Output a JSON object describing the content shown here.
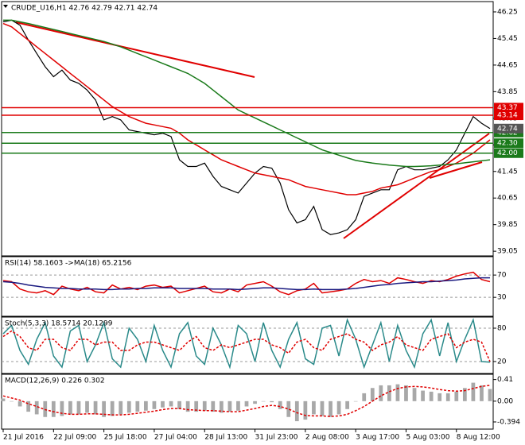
{
  "chart_data": [
    {
      "type": "line",
      "title": "CRUDE_U16,H1 42.76 42.79 42.71 42.74",
      "categories": [
        "21 Jul 2016",
        null,
        null,
        null,
        null,
        null,
        "22 Jul 09:00",
        null,
        null,
        null,
        null,
        null,
        "25 Jul 18:00",
        null,
        null,
        null,
        null,
        null,
        "27 Jul 04:00",
        null,
        null,
        null,
        null,
        null,
        "28 Jul 13:00",
        null,
        null,
        null,
        null,
        null,
        "31 Jul 23:00",
        null,
        null,
        null,
        null,
        null,
        "2 Aug 08:00",
        null,
        null,
        null,
        null,
        null,
        "3 Aug 17:00",
        null,
        null,
        null,
        null,
        null,
        "5 Aug 03:00",
        null,
        null,
        null,
        null,
        null,
        "8 Aug 12:00",
        null,
        null,
        null,
        null
      ],
      "series": [
        {
          "style": "line",
          "color": "#000000",
          "values": [
            45.95,
            46.0,
            45.85,
            45.4,
            45.0,
            44.6,
            44.3,
            44.5,
            44.2,
            44.1,
            43.9,
            43.6,
            43.0,
            43.1,
            43.0,
            42.7,
            42.65,
            42.6,
            42.55,
            42.6,
            42.5,
            41.8,
            41.6,
            41.6,
            41.7,
            41.3,
            41.0,
            40.9,
            40.8,
            41.1,
            41.4,
            41.6,
            41.55,
            41.1,
            40.3,
            39.9,
            40.0,
            40.4,
            39.7,
            39.55,
            39.6,
            39.7,
            40.0,
            40.7,
            40.8,
            40.9,
            40.9,
            41.5,
            41.6,
            41.5,
            41.5,
            41.55,
            41.6,
            41.8,
            42.1,
            42.6,
            43.1,
            42.9,
            42.74
          ]
        },
        {
          "style": "line",
          "color": "#e00000",
          "values": [
            45.9,
            45.8,
            45.6,
            45.4,
            45.2,
            45.0,
            44.8,
            44.6,
            44.4,
            44.2,
            44.0,
            43.8,
            43.6,
            43.4,
            43.25,
            43.1,
            43.0,
            42.9,
            42.85,
            42.8,
            42.75,
            42.6,
            42.4,
            42.25,
            42.1,
            41.95,
            41.8,
            41.7,
            41.6,
            41.5,
            41.4,
            41.35,
            41.3,
            41.25,
            41.2,
            41.1,
            41.0,
            40.95,
            40.9,
            40.85,
            40.8,
            40.75,
            40.75,
            40.8,
            40.85,
            40.95,
            41.0,
            41.05,
            41.15,
            41.25,
            41.35,
            41.45,
            41.5,
            41.6,
            41.7,
            41.85,
            42.0,
            42.2,
            42.4
          ]
        },
        {
          "style": "line",
          "color": "#1a7a1a",
          "values": [
            46.0,
            46.0,
            45.95,
            45.9,
            45.84,
            45.78,
            45.72,
            45.66,
            45.6,
            45.54,
            45.48,
            45.42,
            45.36,
            45.28,
            45.2,
            45.1,
            45.0,
            44.9,
            44.8,
            44.7,
            44.6,
            44.5,
            44.4,
            44.25,
            44.1,
            43.9,
            43.7,
            43.5,
            43.3,
            43.18,
            43.06,
            42.94,
            42.82,
            42.7,
            42.58,
            42.46,
            42.34,
            42.22,
            42.1,
            42.02,
            41.94,
            41.86,
            41.78,
            41.74,
            41.7,
            41.67,
            41.64,
            41.62,
            41.6,
            41.6,
            41.61,
            41.62,
            41.64,
            41.66,
            41.68,
            41.71,
            41.74,
            41.77,
            41.8
          ]
        }
      ],
      "ylim": [
        38.91,
        46.56
      ],
      "yticks": [
        46.25,
        45.45,
        44.65,
        43.85,
        43.05,
        42.25,
        41.45,
        40.65,
        39.85,
        39.05
      ],
      "levels": [
        43.37,
        43.14,
        42.62,
        {
          "value": 42.3,
          "label": "42.30"
        },
        {
          "value": 42.0,
          "label": "42.00"
        }
      ],
      "level_colors": [
        "#e00000",
        "#e00000",
        "#1a7a1a",
        "#1a7a1a",
        "#1a7a1a"
      ],
      "last_price": 42.74,
      "last_price_color": "#555555",
      "grid": false
    },
    {
      "type": "line",
      "title": "RSI(14) 58.1603 ->MA(18) 65.2156",
      "series": [
        {
          "style": "line",
          "color": "#e00000",
          "values": [
            60,
            58,
            45,
            40,
            38,
            42,
            35,
            50,
            45,
            42,
            48,
            40,
            38,
            52,
            45,
            48,
            44,
            50,
            52,
            48,
            50,
            38,
            42,
            46,
            50,
            40,
            38,
            45,
            40,
            52,
            55,
            58,
            50,
            40,
            35,
            42,
            45,
            55,
            38,
            40,
            42,
            45,
            55,
            62,
            58,
            60,
            55,
            65,
            62,
            58,
            55,
            60,
            58,
            62,
            68,
            72,
            75,
            62,
            58
          ]
        },
        {
          "style": "line",
          "color": "#1a1a80",
          "values": [
            58,
            57,
            55,
            52,
            50,
            48,
            47,
            46,
            46,
            45,
            45,
            45,
            44,
            44,
            45,
            45,
            46,
            46,
            47,
            47,
            47,
            46,
            46,
            46,
            46,
            45,
            45,
            45,
            44,
            45,
            46,
            47,
            47,
            46,
            45,
            44,
            44,
            45,
            44,
            44,
            44,
            45,
            46,
            48,
            50,
            52,
            53,
            55,
            56,
            57,
            58,
            58,
            59,
            60,
            61,
            63,
            64,
            65,
            65
          ]
        }
      ],
      "ylim": [
        -4,
        103
      ],
      "yticks": [
        70,
        30
      ],
      "grid": true
    },
    {
      "type": "line",
      "title": "Stoch(5,3,3) 18.5714 20.1299",
      "series": [
        {
          "style": "line",
          "color": "#2a8a8a",
          "values": [
            70,
            85,
            40,
            15,
            60,
            90,
            30,
            10,
            75,
            85,
            20,
            50,
            90,
            25,
            10,
            80,
            60,
            20,
            85,
            40,
            10,
            70,
            90,
            30,
            15,
            80,
            50,
            10,
            85,
            70,
            20,
            90,
            40,
            10,
            60,
            90,
            25,
            15,
            80,
            85,
            30,
            95,
            60,
            10,
            50,
            90,
            20,
            85,
            40,
            10,
            70,
            95,
            30,
            90,
            20,
            60,
            95,
            20,
            19
          ]
        },
        {
          "style": "dashed",
          "color": "#e00000",
          "values": [
            65,
            75,
            65,
            45,
            40,
            60,
            60,
            45,
            40,
            60,
            60,
            50,
            55,
            55,
            40,
            40,
            50,
            55,
            55,
            50,
            45,
            40,
            55,
            65,
            45,
            40,
            50,
            45,
            50,
            55,
            60,
            60,
            50,
            45,
            35,
            55,
            60,
            45,
            40,
            60,
            65,
            70,
            60,
            55,
            40,
            50,
            55,
            65,
            50,
            45,
            40,
            60,
            65,
            70,
            45,
            55,
            60,
            55,
            20
          ]
        }
      ],
      "ylim": [
        -1.5,
        100
      ],
      "yticks": [
        80,
        20
      ],
      "grid": true
    },
    {
      "type": "line",
      "title": "MACD(12,26,9) 0.226 0.302",
      "series": [
        {
          "style": "histogram",
          "color": "#a8a8a8",
          "values": [
            0.05,
            0.0,
            -0.1,
            -0.2,
            -0.25,
            -0.3,
            -0.3,
            -0.28,
            -0.25,
            -0.25,
            -0.22,
            -0.25,
            -0.3,
            -0.28,
            -0.25,
            -0.22,
            -0.2,
            -0.18,
            -0.15,
            -0.12,
            -0.1,
            -0.15,
            -0.2,
            -0.2,
            -0.18,
            -0.2,
            -0.22,
            -0.2,
            -0.18,
            -0.1,
            -0.05,
            0.0,
            -0.02,
            -0.15,
            -0.3,
            -0.38,
            -0.35,
            -0.25,
            -0.28,
            -0.3,
            -0.25,
            -0.15,
            0.0,
            0.15,
            0.25,
            0.3,
            0.3,
            0.32,
            0.3,
            0.25,
            0.2,
            0.18,
            0.15,
            0.15,
            0.18,
            0.25,
            0.35,
            0.3,
            0.23
          ]
        },
        {
          "style": "dashed",
          "color": "#e00000",
          "values": [
            0.1,
            0.06,
            0.02,
            -0.05,
            -0.1,
            -0.16,
            -0.2,
            -0.23,
            -0.25,
            -0.25,
            -0.24,
            -0.24,
            -0.25,
            -0.26,
            -0.26,
            -0.25,
            -0.23,
            -0.21,
            -0.19,
            -0.16,
            -0.14,
            -0.14,
            -0.16,
            -0.17,
            -0.18,
            -0.18,
            -0.19,
            -0.2,
            -0.2,
            -0.17,
            -0.14,
            -0.1,
            -0.08,
            -0.1,
            -0.15,
            -0.22,
            -0.27,
            -0.28,
            -0.28,
            -0.29,
            -0.28,
            -0.25,
            -0.18,
            -0.1,
            0.0,
            0.1,
            0.18,
            0.24,
            0.27,
            0.28,
            0.27,
            0.25,
            0.22,
            0.2,
            0.19,
            0.2,
            0.24,
            0.28,
            0.3
          ]
        }
      ],
      "ylim": [
        -0.53,
        0.51
      ],
      "yticks": [
        0.41,
        {
          "value": 0,
          "label": "0.00"
        },
        -0.394
      ],
      "grid": false
    }
  ]
}
